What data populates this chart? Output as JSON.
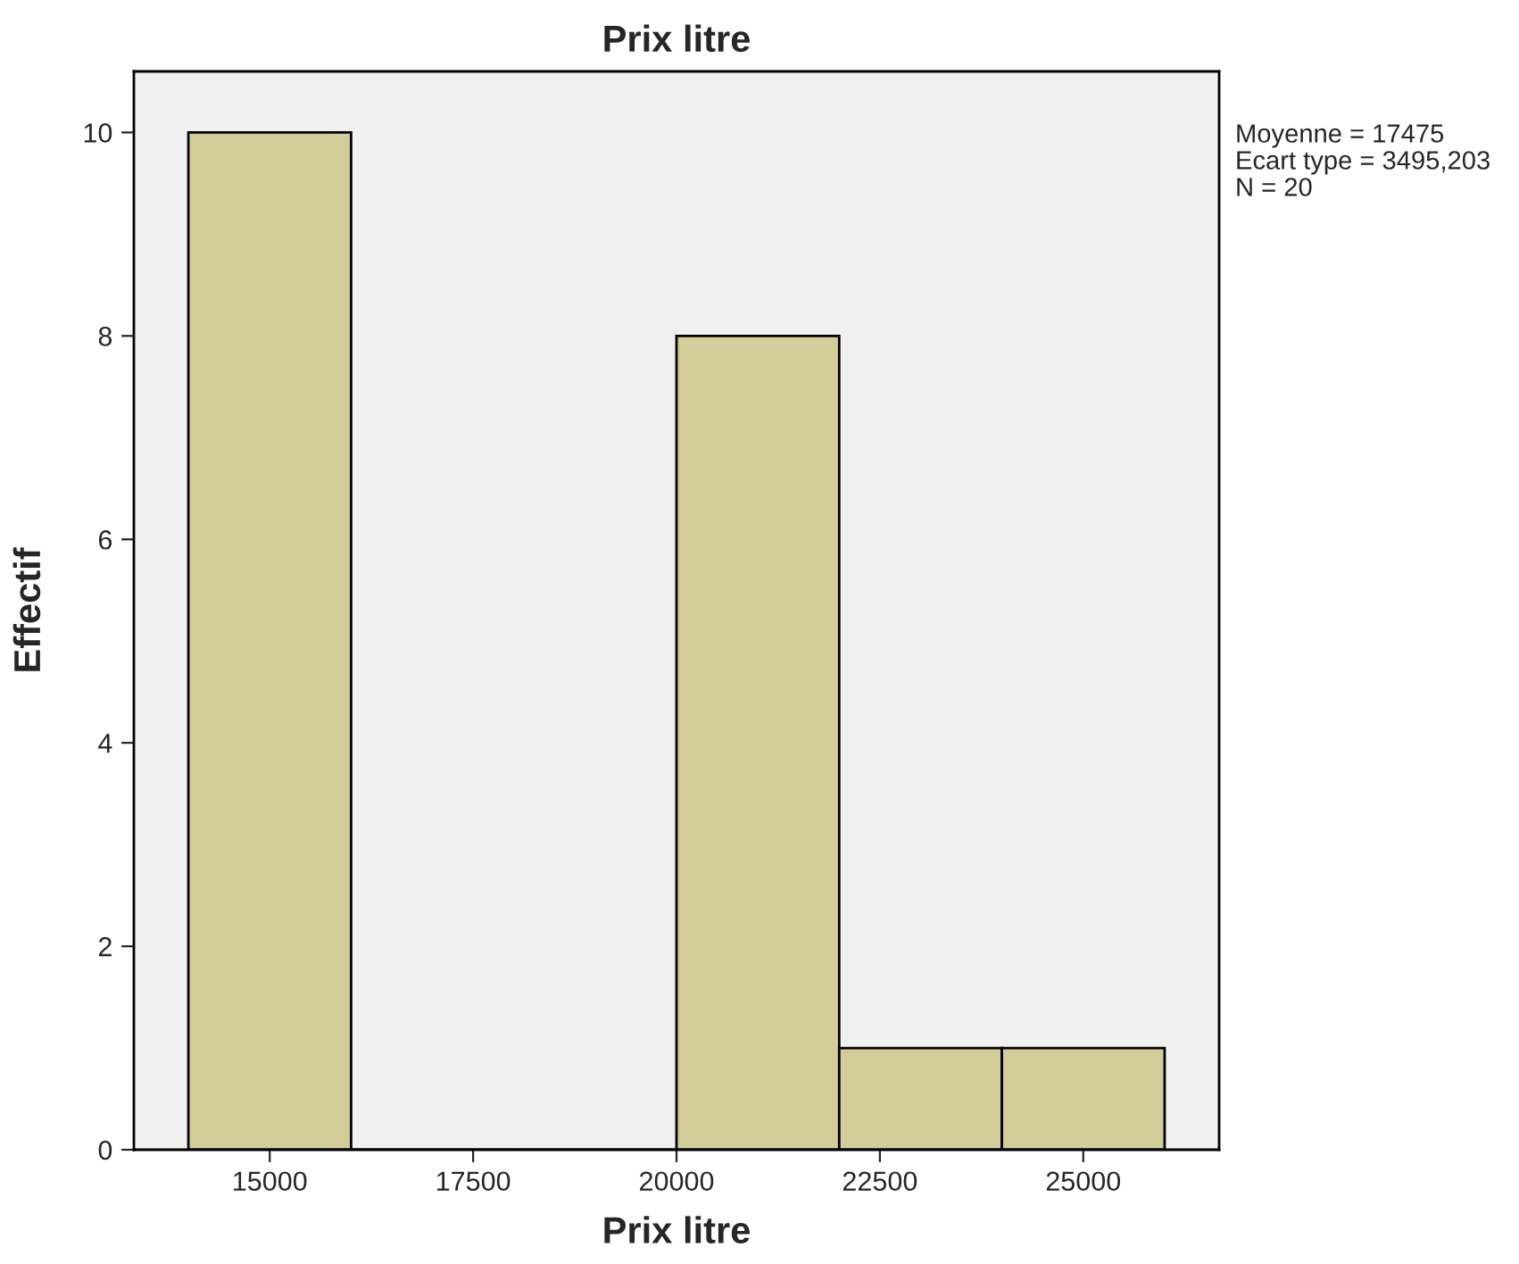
{
  "chart_data": {
    "type": "histogram",
    "title": "Prix litre",
    "xlabel": "Prix litre",
    "ylabel": "Effectif",
    "bins": [
      14000,
      16000,
      18000,
      20000,
      22000,
      24000,
      26000
    ],
    "values": [
      10,
      0,
      0,
      8,
      1,
      1
    ],
    "color": "#d3ce99",
    "xlim": [
      13330,
      26670
    ],
    "xticks": [
      15000,
      17500,
      20000,
      22500,
      25000
    ],
    "ylim": [
      0,
      10.6
    ],
    "yticks": [
      0,
      2,
      4,
      6,
      8,
      10
    ],
    "grid": false,
    "annotations": [
      "Moyenne = 17475",
      "Ecart type = 3495,203",
      "N = 20"
    ]
  }
}
